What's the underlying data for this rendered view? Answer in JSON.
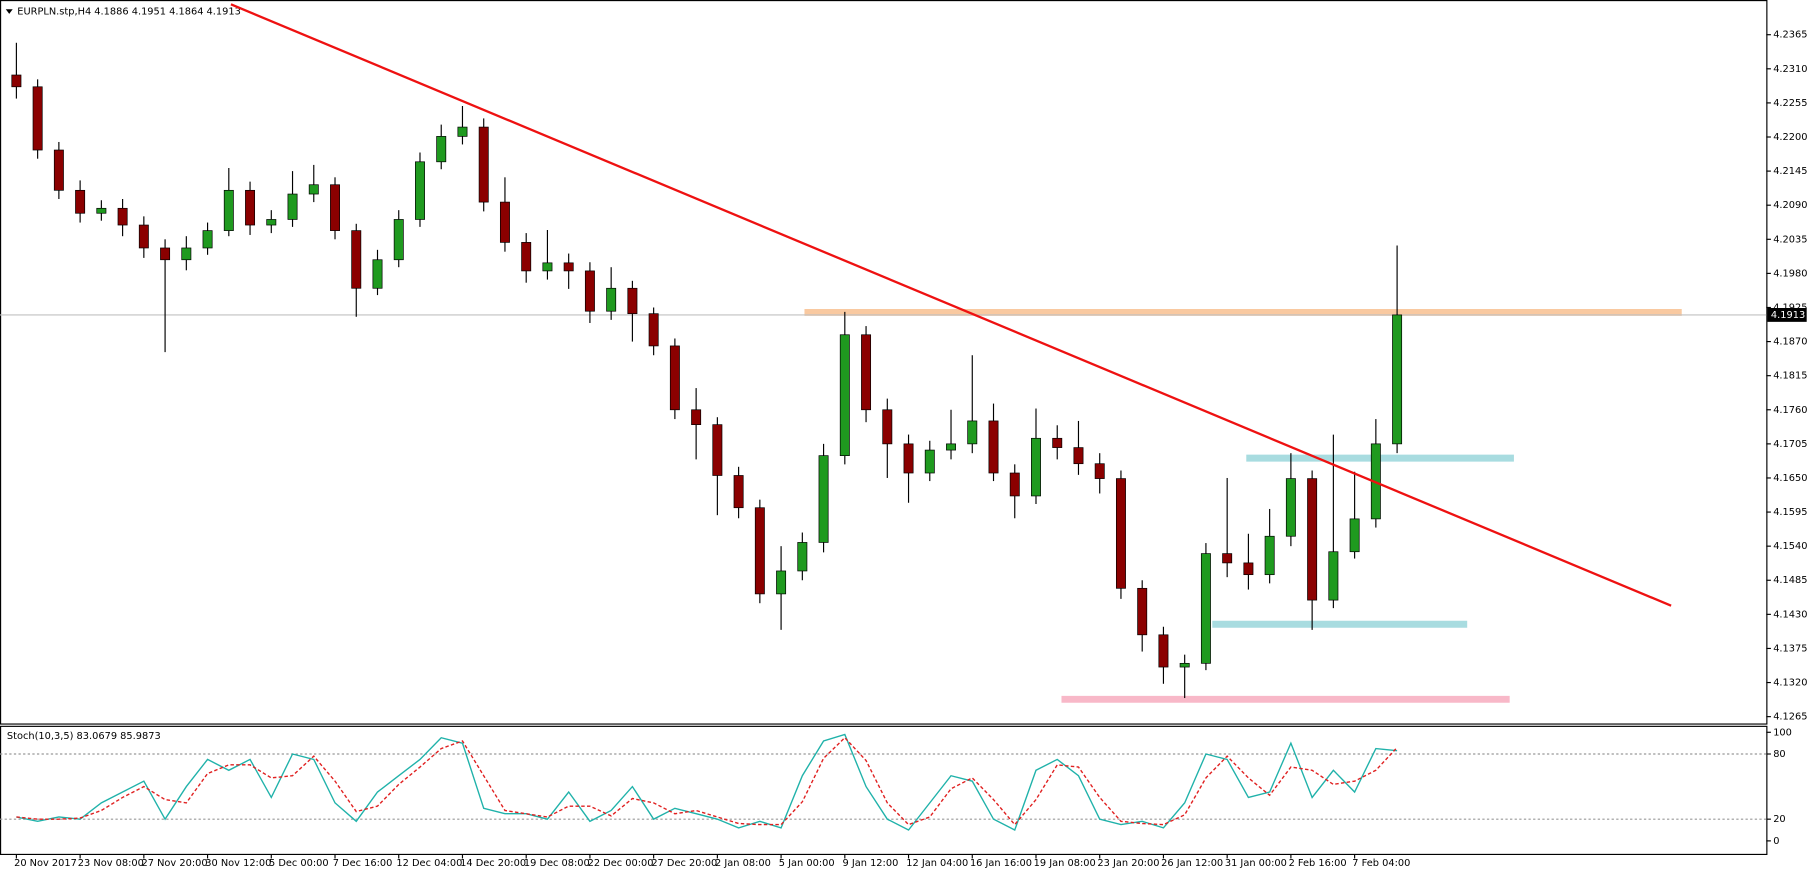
{
  "chart_data": [
    {
      "type": "candlestick",
      "symbol": "EURPLN.stp,H4",
      "header_ohlc": [
        4.1886,
        4.1951,
        4.1864,
        4.1913
      ],
      "categories": [
        "20 Nov 2017",
        null,
        null,
        "23 Nov 08:00",
        null,
        null,
        "27 Nov 20:00",
        null,
        null,
        "30 Nov 12:00",
        null,
        null,
        "5 Dec 00:00",
        null,
        null,
        "7 Dec 16:00",
        null,
        null,
        "12 Dec 04:00",
        null,
        null,
        "14 Dec 20:00",
        null,
        null,
        "19 Dec 08:00",
        null,
        null,
        "22 Dec 00:00",
        null,
        null,
        "27 Dec 20:00",
        null,
        null,
        "2 Jan 08:00",
        null,
        null,
        "5 Jan 00:00",
        null,
        null,
        "9 Jan 12:00",
        null,
        null,
        "12 Jan 04:00",
        null,
        null,
        "16 Jan 16:00",
        null,
        null,
        "19 Jan 08:00",
        null,
        null,
        "23 Jan 20:00",
        null,
        null,
        "26 Jan 12:00",
        null,
        null,
        "31 Jan 00:00",
        null,
        null,
        "2 Feb 16:00",
        null,
        null,
        "7 Feb 04:00",
        null,
        null
      ],
      "open": [
        4.23,
        4.2281,
        4.2179,
        4.2114,
        4.2077,
        4.2085,
        4.2058,
        4.2021,
        4.2002,
        4.2021,
        4.2049,
        4.2114,
        4.2058,
        4.2067,
        4.2108,
        4.2123,
        4.2049,
        4.1956,
        4.2002,
        4.2067,
        4.216,
        4.2201,
        4.2216,
        4.2095,
        4.203,
        4.1984,
        4.1997,
        4.1984,
        4.1919,
        4.1956,
        4.1915,
        4.1863,
        4.176,
        4.1736,
        4.1654,
        4.1602,
        4.1463,
        4.15,
        4.1546,
        4.1686,
        4.1881,
        4.176,
        4.1705,
        4.1658,
        4.1695,
        4.1705,
        4.1742,
        4.1658,
        4.1621,
        4.1714,
        4.1699,
        4.1673,
        4.1649,
        4.1472,
        4.1397,
        4.1345,
        4.1351,
        4.1528,
        4.1513,
        4.1494,
        4.1556,
        4.1649,
        4.1453,
        4.1531,
        4.1584,
        4.1705
      ],
      "high": [
        4.2352,
        4.2293,
        4.2192,
        4.213,
        4.2098,
        4.21,
        4.2072,
        4.2035,
        4.204,
        4.2062,
        4.215,
        4.2128,
        4.2082,
        4.2145,
        4.2155,
        4.2135,
        4.206,
        4.2018,
        4.2082,
        4.2175,
        4.222,
        4.225,
        4.223,
        4.2135,
        4.2045,
        4.205,
        4.2012,
        4.1998,
        4.199,
        4.1968,
        4.1925,
        4.1875,
        4.1795,
        4.1748,
        4.1668,
        4.1615,
        4.154,
        4.1562,
        4.1705,
        4.1918,
        4.1895,
        4.1778,
        4.172,
        4.171,
        4.176,
        4.1848,
        4.177,
        4.1672,
        4.1762,
        4.1735,
        4.1742,
        4.169,
        4.1662,
        4.1485,
        4.141,
        4.1365,
        4.1545,
        4.165,
        4.156,
        4.16,
        4.169,
        4.1662,
        4.172,
        4.166,
        4.1745,
        4.2025
      ],
      "low": [
        4.2262,
        4.2165,
        4.21,
        4.2062,
        4.2065,
        4.204,
        4.2005,
        4.1853,
        4.1985,
        4.201,
        4.204,
        4.2042,
        4.2045,
        4.2055,
        4.2095,
        4.2035,
        4.191,
        4.1945,
        4.199,
        4.2055,
        4.2148,
        4.2188,
        4.208,
        4.2015,
        4.1965,
        4.197,
        4.1955,
        4.19,
        4.1905,
        4.187,
        4.1848,
        4.1745,
        4.168,
        4.159,
        4.1585,
        4.1448,
        4.1405,
        4.1485,
        4.153,
        4.1672,
        4.174,
        4.165,
        4.161,
        4.1645,
        4.168,
        4.169,
        4.1645,
        4.1585,
        4.1608,
        4.168,
        4.1655,
        4.1625,
        4.1455,
        4.137,
        4.1318,
        4.1295,
        4.134,
        4.149,
        4.147,
        4.148,
        4.154,
        4.1405,
        4.144,
        4.152,
        4.157,
        4.169
      ],
      "close": [
        4.2281,
        4.2179,
        4.2114,
        4.2077,
        4.2085,
        4.2058,
        4.2021,
        4.2002,
        4.2021,
        4.2049,
        4.2114,
        4.2058,
        4.2067,
        4.2108,
        4.2123,
        4.2049,
        4.1956,
        4.2002,
        4.2067,
        4.216,
        4.2201,
        4.2216,
        4.2095,
        4.203,
        4.1984,
        4.1997,
        4.1984,
        4.1919,
        4.1956,
        4.1915,
        4.1863,
        4.176,
        4.1736,
        4.1654,
        4.1602,
        4.1463,
        4.15,
        4.1546,
        4.1686,
        4.1881,
        4.176,
        4.1705,
        4.1658,
        4.1695,
        4.1705,
        4.1742,
        4.1658,
        4.1621,
        4.1714,
        4.1699,
        4.1673,
        4.1649,
        4.1472,
        4.1397,
        4.1345,
        4.1351,
        4.1528,
        4.1513,
        4.1494,
        4.1556,
        4.1649,
        4.1453,
        4.1531,
        4.1584,
        4.1705,
        4.1913
      ],
      "up_color": "#1f9a1f",
      "down_color": "#8b0000",
      "ylim": [
        4.1254,
        4.2421
      ],
      "yticks": [
        4.1265,
        {
          "value": 4.132,
          "label": "4.1320"
        },
        4.1375,
        {
          "value": 4.143,
          "label": "4.1430"
        },
        4.1485,
        {
          "value": 4.154,
          "label": "4.1540"
        },
        4.1595,
        {
          "value": 4.165,
          "label": "4.1650"
        },
        4.1705,
        {
          "value": 4.176,
          "label": "4.1760"
        },
        4.1815,
        {
          "value": 4.187,
          "label": "4.1870"
        },
        4.1925,
        {
          "value": 4.198,
          "label": "4.1980"
        },
        4.2035,
        {
          "value": 4.209,
          "label": "4.2090"
        },
        4.2145,
        {
          "value": 4.22,
          "label": "4.2200"
        },
        4.2255,
        {
          "value": 4.231,
          "label": "4.2310"
        },
        4.2365
      ],
      "trendline": {
        "start": [
          10.1,
          4.2414
        ],
        "end": [
          77.9,
          4.1444
        ],
        "color": "#ee1111"
      },
      "zones": [
        {
          "level": 4.1917,
          "from": 37.1,
          "to": 78.4,
          "color": "#f9c9a0"
        },
        {
          "level": 4.1682,
          "from": 57.9,
          "to": 70.5,
          "color": "#a8dce0"
        },
        {
          "level": 4.1414,
          "from": 56.3,
          "to": 68.3,
          "color": "#a8dce0"
        },
        {
          "level": 4.1293,
          "from": 49.2,
          "to": 70.3,
          "color": "#f8b8c8"
        }
      ]
    },
    {
      "type": "line",
      "indicator": "Stoch(10,3,5)",
      "series": [
        {
          "color": "#20b2aa",
          "values": [
            22,
            18,
            22,
            20,
            35,
            45,
            55,
            20,
            50,
            75,
            65,
            75,
            40,
            80,
            75,
            35,
            18,
            45,
            60,
            75,
            95,
            90,
            30,
            25,
            25,
            20,
            45,
            18,
            28,
            50,
            20,
            30,
            25,
            20,
            12,
            18,
            12,
            60,
            92,
            98,
            50,
            20,
            10,
            35,
            60,
            55,
            20,
            10,
            65,
            75,
            60,
            20,
            15,
            18,
            12,
            35,
            80,
            75,
            40,
            45,
            90,
            40,
            65,
            45,
            85,
            83.0679
          ]
        },
        {
          "color": "#e02020",
          "dashed": true,
          "values": [
            22,
            20,
            20,
            21,
            28,
            40,
            50,
            38,
            35,
            62,
            70,
            70,
            58,
            60,
            78,
            55,
            27,
            32,
            52,
            68,
            85,
            92,
            60,
            28,
            25,
            22,
            32,
            32,
            23,
            39,
            35,
            25,
            28,
            22,
            16,
            15,
            15,
            36,
            76,
            95,
            74,
            35,
            15,
            22,
            48,
            58,
            38,
            15,
            38,
            70,
            68,
            40,
            18,
            16,
            15,
            24,
            58,
            78,
            58,
            42,
            68,
            65,
            52,
            55,
            65,
            85.9873
          ]
        }
      ],
      "levels": [
        20,
        80
      ],
      "ylim": [
        -13,
        106
      ],
      "yticks": [
        0,
        20,
        80,
        100
      ]
    }
  ]
}
